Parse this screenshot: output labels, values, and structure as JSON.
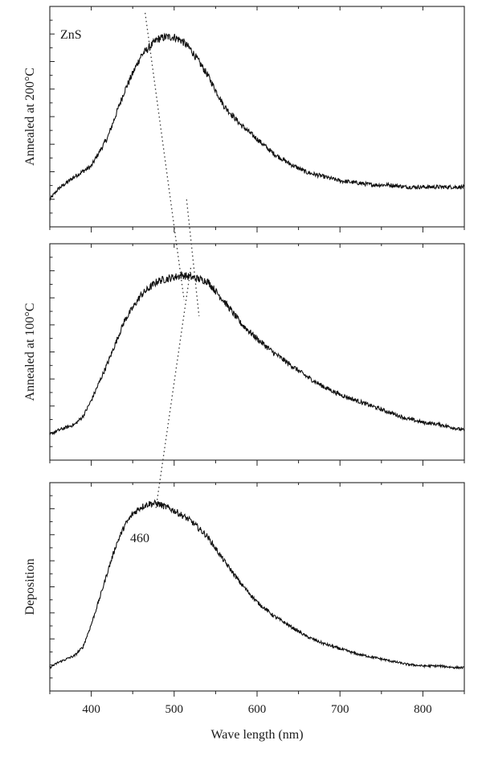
{
  "chart_data": {
    "type": "line",
    "xlabel": "Wave length (nm)",
    "xlim": [
      350,
      850
    ],
    "x_ticks": [
      400,
      500,
      600,
      700,
      800
    ],
    "y_ticks_labeled": false,
    "grid": false,
    "panels": [
      {
        "ylabel": "Annealed at 200°C",
        "annotation": "ZnS",
        "peak_wavelength": 490,
        "series": [
          {
            "x": [
              350,
              360,
              380,
              400,
              420,
              440,
              460,
              480,
              490,
              500,
              510,
              520,
              540,
              560,
              580,
              600,
              620,
              640,
              660,
              680,
              700,
              720,
              740,
              760,
              780,
              800,
              820,
              840,
              850
            ],
            "y": [
              0.22,
              0.27,
              0.33,
              0.38,
              0.52,
              0.74,
              0.91,
              0.99,
              1.0,
              1.0,
              0.98,
              0.94,
              0.82,
              0.67,
              0.58,
              0.51,
              0.44,
              0.39,
              0.35,
              0.33,
              0.31,
              0.3,
              0.29,
              0.29,
              0.28,
              0.28,
              0.28,
              0.28,
              0.28
            ]
          }
        ]
      },
      {
        "ylabel": "Annealed at 100°C",
        "peak_wavelength": 510,
        "series": [
          {
            "x": [
              350,
              360,
              380,
              390,
              400,
              420,
              440,
              460,
              480,
              500,
              510,
              520,
              530,
              540,
              560,
              580,
              600,
              620,
              640,
              660,
              680,
              700,
              720,
              740,
              760,
              780,
              800,
              820,
              840,
              850
            ],
            "y": [
              0.19,
              0.21,
              0.24,
              0.28,
              0.36,
              0.55,
              0.76,
              0.89,
              0.96,
              0.98,
              0.99,
              0.98,
              0.97,
              0.96,
              0.86,
              0.75,
              0.67,
              0.6,
              0.54,
              0.48,
              0.43,
              0.39,
              0.36,
              0.33,
              0.3,
              0.27,
              0.25,
              0.24,
              0.22,
              0.21
            ]
          }
        ]
      },
      {
        "ylabel": "Deposition",
        "annotation": "460",
        "peak_wavelength": 470,
        "series": [
          {
            "x": [
              350,
              360,
              370,
              380,
              390,
              400,
              410,
              420,
              430,
              440,
              450,
              460,
              470,
              480,
              490,
              500,
              520,
              540,
              560,
              580,
              600,
              620,
              640,
              660,
              680,
              700,
              720,
              740,
              760,
              780,
              800,
              820,
              840,
              850
            ],
            "y": [
              0.04,
              0.07,
              0.09,
              0.11,
              0.16,
              0.29,
              0.44,
              0.6,
              0.75,
              0.86,
              0.93,
              0.97,
              0.99,
              0.99,
              0.97,
              0.95,
              0.89,
              0.8,
              0.66,
              0.53,
              0.42,
              0.34,
              0.28,
              0.22,
              0.18,
              0.15,
              0.12,
              0.1,
              0.08,
              0.06,
              0.05,
              0.05,
              0.04,
              0.04
            ]
          }
        ]
      }
    ]
  }
}
